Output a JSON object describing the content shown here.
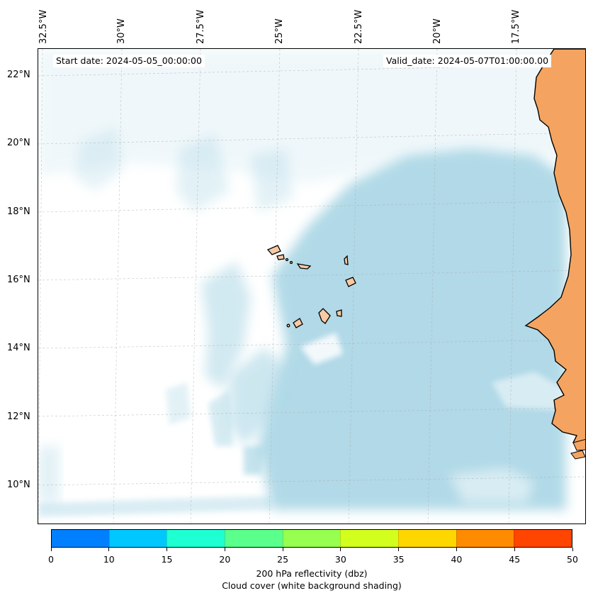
{
  "map": {
    "start_date_text": "Start date: 2024-05-05_00:00:00",
    "valid_date_text": "Valid_date: 2024-05-07T01:00:00.00",
    "lon_labels": [
      "32.5°W",
      "30°W",
      "27.5°W",
      "25°W",
      "22.5°W",
      "20°W",
      "17.5°W"
    ],
    "lat_labels": [
      "22°N",
      "20°N",
      "18°N",
      "16°N",
      "14°N",
      "12°N",
      "10°N"
    ],
    "cloud_color": "#add8e6",
    "land_color": "#f4a460",
    "island_color": "#f8c9a3"
  },
  "colorbar": {
    "tick_labels": [
      "0",
      "10",
      "15",
      "20",
      "25",
      "30",
      "35",
      "40",
      "45",
      "50"
    ],
    "colors": [
      "#0080ff",
      "#00c8ff",
      "#1effd2",
      "#5aff8c",
      "#96ff50",
      "#d2ff1e",
      "#ffd700",
      "#ff8c00",
      "#ff4500"
    ],
    "title_line1": "200 hPa reflectivity (dbz)",
    "title_line2": "Cloud cover (white background shading)"
  }
}
